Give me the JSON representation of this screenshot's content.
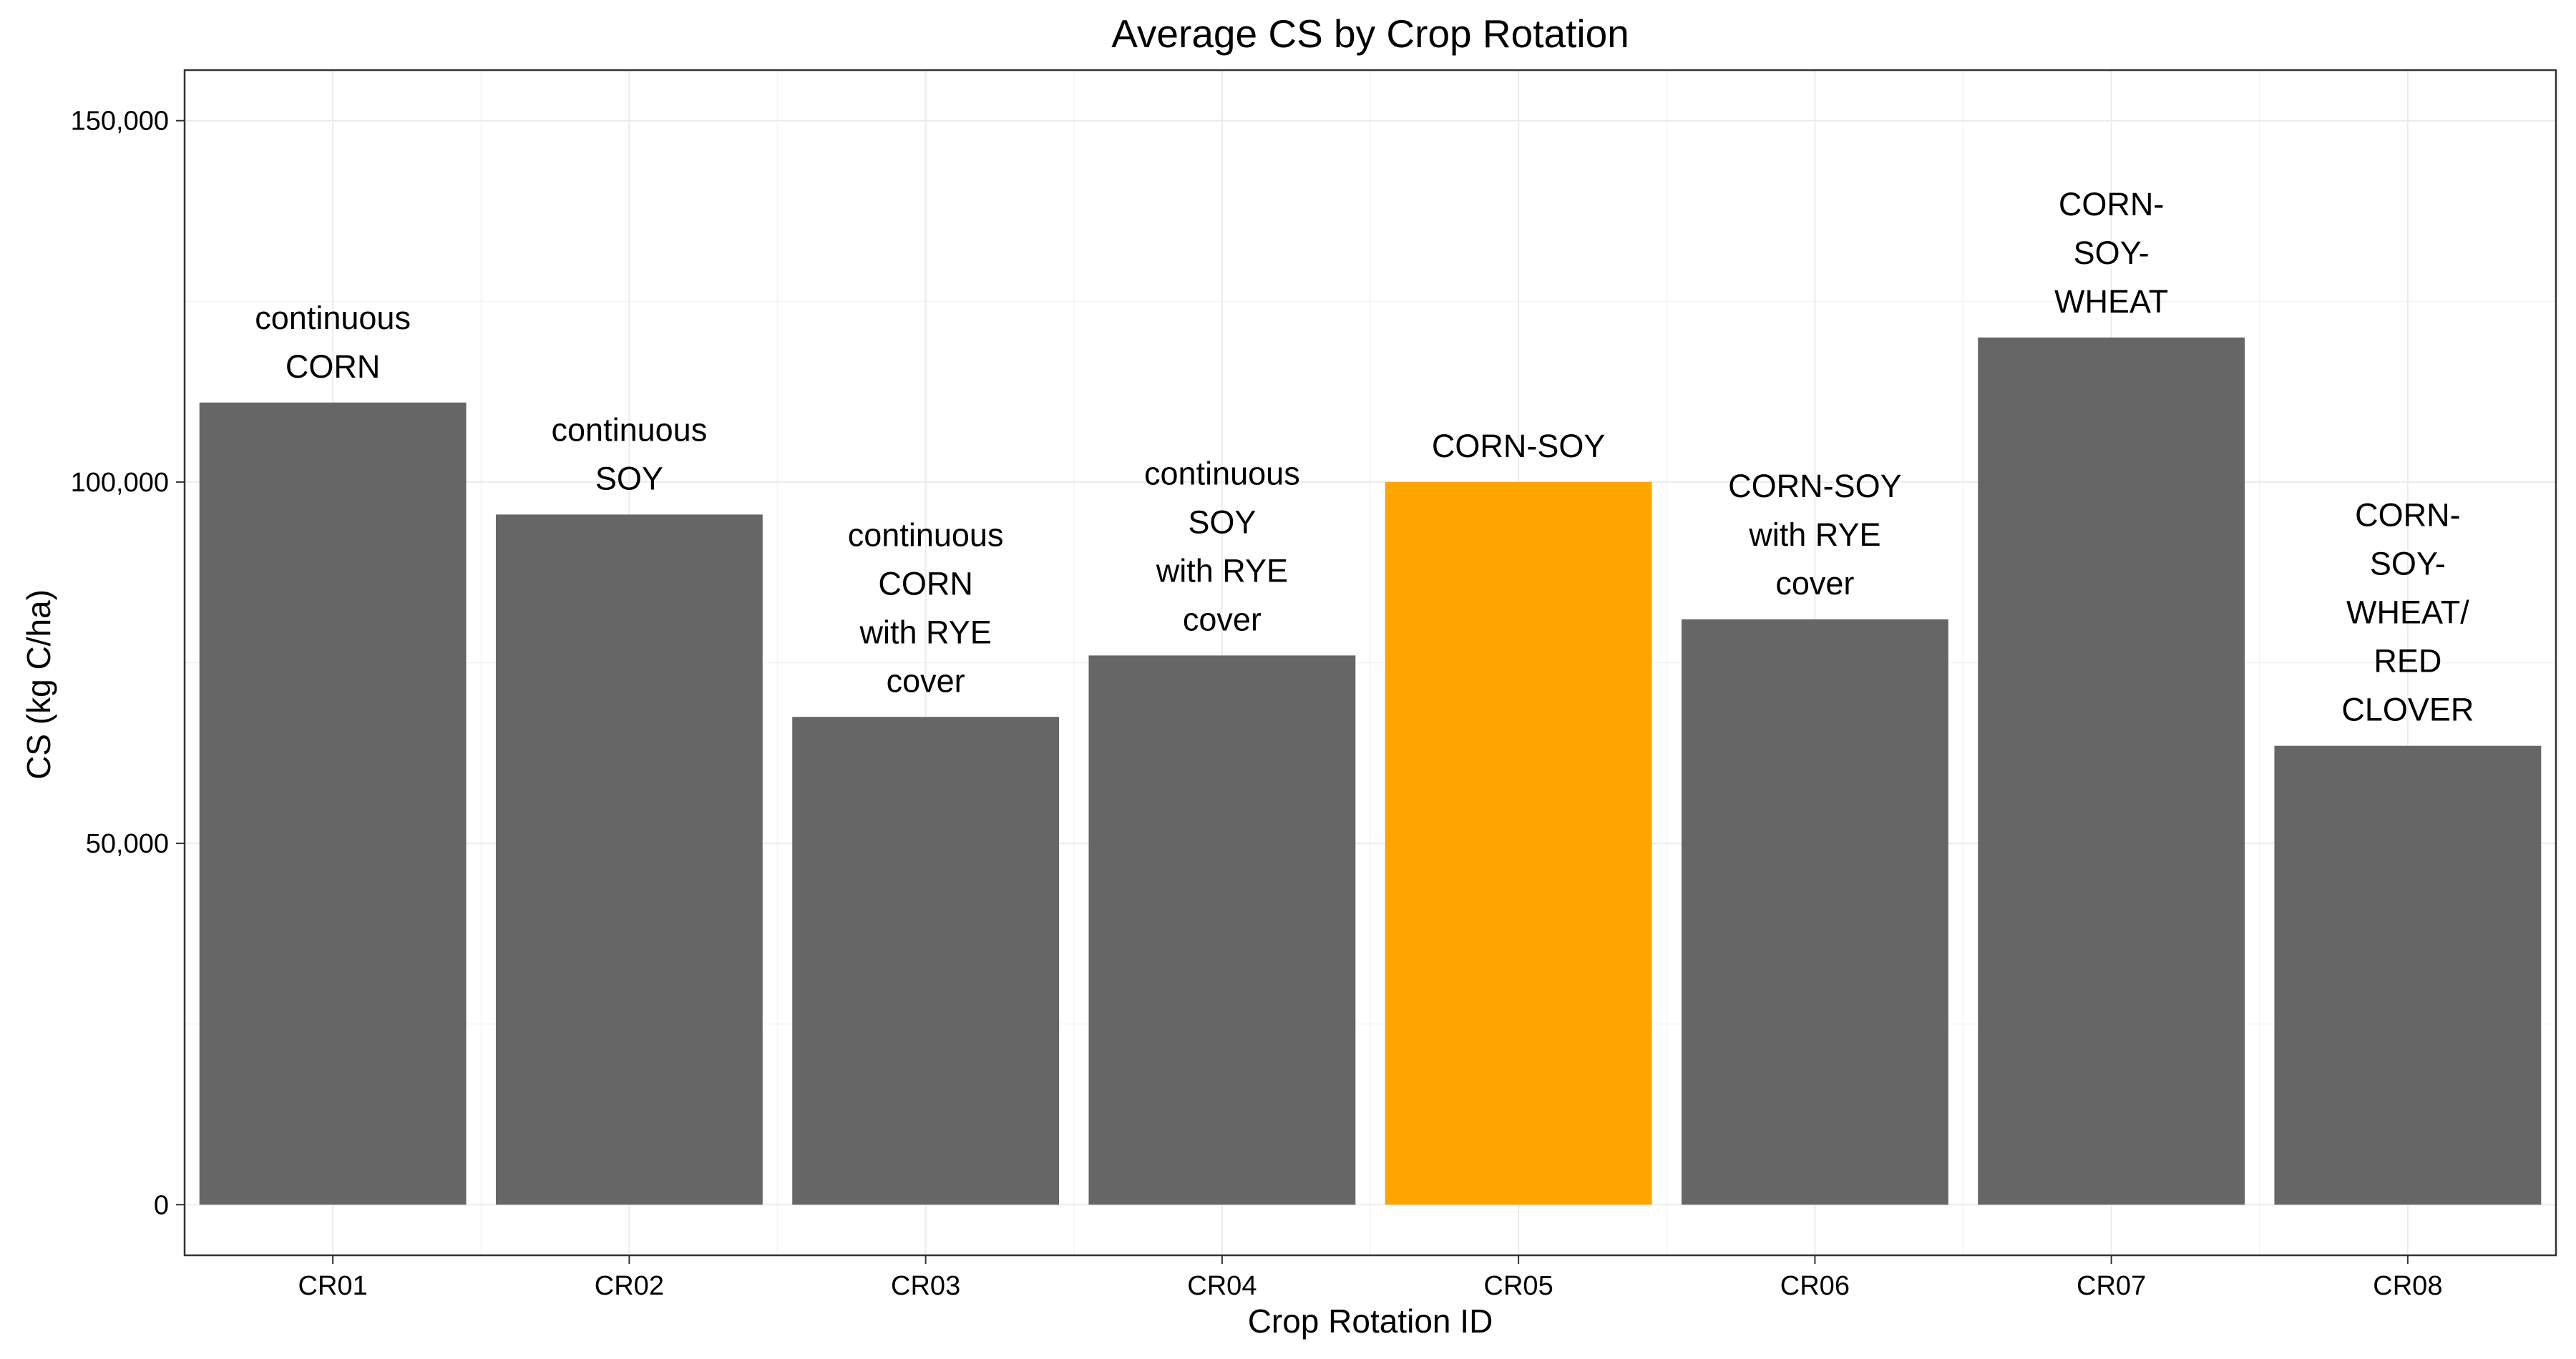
{
  "chart_data": {
    "type": "bar",
    "title": "Average CS by Crop Rotation",
    "xlabel": "Crop Rotation ID",
    "ylabel": "CS (kg C/ha)",
    "ylim": [
      -7000,
      157000
    ],
    "yticks": [
      0,
      50000,
      100000,
      150000
    ],
    "ytick_labels": [
      "0",
      "50,000",
      "100,000",
      "150,000"
    ],
    "grid": true,
    "categories": [
      "CR01",
      "CR02",
      "CR03",
      "CR04",
      "CR05",
      "CR06",
      "CR07",
      "CR08"
    ],
    "values": [
      111000,
      95500,
      67500,
      76000,
      100000,
      81000,
      120000,
      63500
    ],
    "bar_labels": [
      [
        "continuous",
        "CORN"
      ],
      [
        "continuous",
        "SOY"
      ],
      [
        "continuous",
        "CORN",
        "with RYE",
        "cover"
      ],
      [
        "continuous",
        "SOY",
        "with RYE",
        "cover"
      ],
      [
        "CORN-SOY"
      ],
      [
        "CORN-SOY",
        "with RYE",
        "cover"
      ],
      [
        "CORN-",
        "SOY-",
        "WHEAT"
      ],
      [
        "CORN-",
        "SOY-",
        "WHEAT/",
        "RED",
        "CLOVER"
      ]
    ],
    "colors": {
      "default": "#666666",
      "highlight": "#ffa500",
      "highlight_category": "CR05"
    }
  }
}
